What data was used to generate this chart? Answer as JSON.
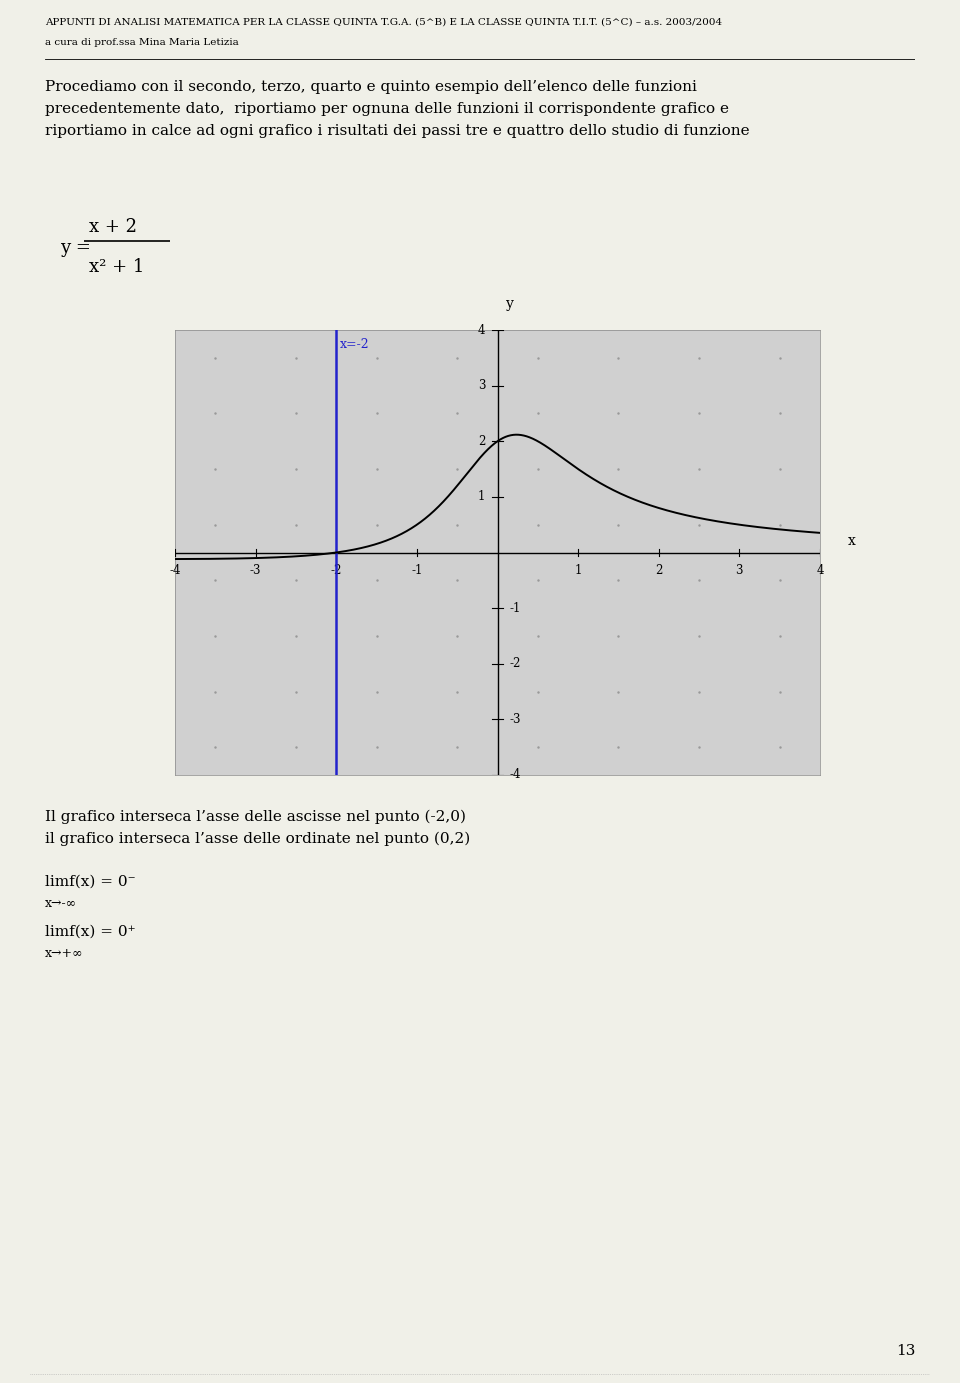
{
  "header_line1": "APPUNTI DI ANALISI MATEMATICA PER LA CLASSE QUINTA T.G.A. (5^B) E LA CLASSE QUINTA T.I.T. (5^C) – a.s. 2003/2004",
  "header_line2": "a cura di prof.ssa Mina Maria Letizia",
  "intro_text": "Procediamo con il secondo, terzo, quarto e quinto esempio dell’elenco delle funzioni\nprecedentemente dato,  riportiamo per ognuna delle funzioni il corrispondente grafico e\nriportiamo in calce ad ogni grafico i risultati dei passi tre e quattro dello studio di funzione",
  "formula_num": "x + 2",
  "formula_den": "x² + 1",
  "xlim": [
    -4,
    4
  ],
  "ylim": [
    -4,
    4
  ],
  "xticks": [
    -4,
    -3,
    -2,
    -1,
    1,
    2,
    3,
    4
  ],
  "yticks": [
    -4,
    -3,
    -2,
    -1,
    1,
    2,
    3,
    4
  ],
  "vline_x": -2,
  "vline_label": "x=-2",
  "vline_color": "#2222cc",
  "graph_bg_color": "#d0d0d0",
  "curve_color": "#000000",
  "text1": "Il grafico interseca l’asse delle ascisse nel punto (-2,0)",
  "text2": "il grafico interseca l’asse delle ordinate nel punto (0,2)",
  "text3": "limf(x) = 0⁻",
  "text3b": "x→-∞",
  "text4": "limf(x) = 0⁺",
  "text4b": "x→+∞",
  "page_number": "13",
  "bg_color": "#f0f0e8"
}
